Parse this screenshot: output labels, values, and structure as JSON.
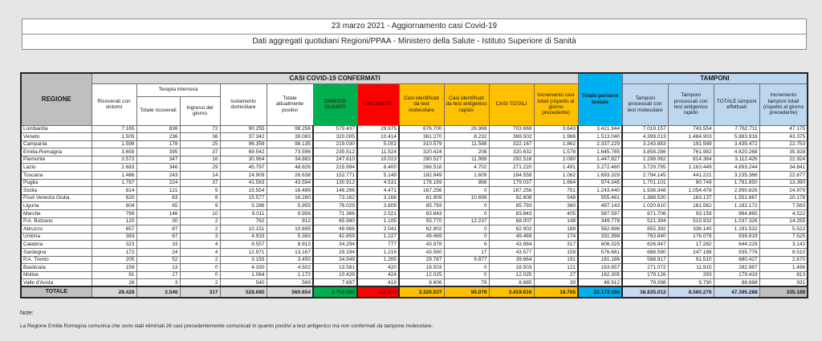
{
  "header": {
    "line1": "23 marzo 2021 - Aggiornamento casi Covid-19",
    "line2": "Dati aggregati quotidiani Regioni/PPAA - Ministero della Salute - Istituto Superiore di Sanità"
  },
  "note": {
    "title": "Note:",
    "text": "La Regione Emilia Romagna comunica che sono stati eliminati 26 casi precedentemente comunicati in quanto positivi a test antigenico ma non confermati da tampone molecolare."
  },
  "colors": {
    "green": "#00B050",
    "red": "#FF0000",
    "yellow": "#FFC000",
    "cyan": "#00B0F0",
    "light_blue": "#BDD7EE",
    "header_gray": "#BFBFBF",
    "band_gray": "#D9D9D9",
    "total_gray": "#D9D9D9"
  },
  "chart_data": {
    "type": "table",
    "title": "23 marzo 2021 - Aggiornamento casi Covid-19",
    "headers": {
      "regione": "REGIONE",
      "confermati": "CASI COVID-19 CONFERMATI",
      "tamponi": "TAMPONI",
      "ricoverati": "Ricoverati con sintomi",
      "terapia_intensiva": "Terapia intensiva",
      "totale_ricoverati": "Totale ricoverati",
      "ingressi": "Ingressi del giorno",
      "isolamento": "Isolamento domiciliare",
      "positivi": "Totale attualmente positivi",
      "dimessi": "DIMESSI GUARITI",
      "deceduti": "DECEDUTI",
      "molecolare": "Casi identificati da test molecolare",
      "antigenico": "Casi identificati da test antigenico rapido",
      "casi_totali": "CASI TOTALI",
      "incremento": "Incremento casi totali (rispetto al giorno precedente)",
      "persone_testate": "Totale persone testate",
      "tamponi_molecolare": "Tamponi processati con test molecolare",
      "tamponi_antigenico": "Tamponi processati con test antigenico rapido",
      "tamponi_totale": "TOTALE tamponi effettuati",
      "tamponi_incremento": "Incremento tamponi totali (rispetto al giorno precedente)"
    },
    "columns_order": [
      "ricoverati",
      "totale_ricoverati",
      "ingressi",
      "isolamento",
      "positivi",
      "dimessi",
      "deceduti",
      "molecolare",
      "antigenico",
      "casi_totali",
      "incremento",
      "persone_testate",
      "tamponi_molecolare",
      "tamponi_antigenico",
      "tamponi_totale",
      "tamponi_incremento"
    ],
    "rows": [
      {
        "regione": "Lombardia",
        "values": [
          "7.165",
          "836",
          "72",
          "90.255",
          "98.256",
          "575.437",
          "29.975",
          "676.700",
          "26.968",
          "703.668",
          "3.643",
          "3.421.944",
          "7.019.157",
          "743.554",
          "7.762.711",
          "47.175"
        ]
      },
      {
        "regione": "Veneto",
        "values": [
          "1.505",
          "236",
          "36",
          "37.342",
          "39.083",
          "320.005",
          "10.414",
          "361.270",
          "8.232",
          "369.502",
          "1.966",
          "1.513.040",
          "4.399.013",
          "1.484.903",
          "5.883.916",
          "43.375"
        ]
      },
      {
        "regione": "Campania",
        "values": [
          "1.598",
          "178",
          "25",
          "96.359",
          "98.135",
          "219.030",
          "5.002",
          "310.579",
          "11.588",
          "322.167",
          "1.862",
          "2.337.229",
          "3.243.883",
          "191.589",
          "3.435.472",
          "22.753"
        ]
      },
      {
        "regione": "Emilia-Romagna",
        "values": [
          "3.659",
          "395",
          "37",
          "69.542",
          "73.596",
          "235.512",
          "11.524",
          "320.424",
          "208",
          "320.632",
          "1.578",
          "1.645.785",
          "3.858.286",
          "761.982",
          "4.620.268",
          "35.928"
        ]
      },
      {
        "regione": "Piemonte",
        "values": [
          "3.572",
          "347",
          "16",
          "30.964",
          "34.883",
          "247.610",
          "10.023",
          "280.527",
          "11.989",
          "292.516",
          "2.080",
          "1.447.827",
          "2.298.062",
          "814.364",
          "3.112.426",
          "22.924"
        ]
      },
      {
        "regione": "Lazio",
        "values": [
          "2.683",
          "346",
          "29",
          "45.797",
          "48.826",
          "215.994",
          "6.400",
          "266.518",
          "4.702",
          "271.220",
          "1.491",
          "3.272.480",
          "3.729.795",
          "1.163.449",
          "4.893.244",
          "34.841"
        ]
      },
      {
        "regione": "Toscana",
        "values": [
          "1.486",
          "243",
          "14",
          "24.909",
          "26.638",
          "152.771",
          "5.149",
          "182.949",
          "1.609",
          "184.558",
          "1.062",
          "1.693.329",
          "2.794.145",
          "441.221",
          "3.235.366",
          "22.677"
        ]
      },
      {
        "regione": "Puglia",
        "values": [
          "1.787",
          "224",
          "37",
          "41.583",
          "43.594",
          "130.912",
          "4.531",
          "178.169",
          "868",
          "179.037",
          "1.664",
          "974.345",
          "1.701.101",
          "80.749",
          "1.781.850",
          "13.390"
        ]
      },
      {
        "regione": "Sicilia",
        "values": [
          "814",
          "121",
          "5",
          "15.554",
          "16.489",
          "146.296",
          "4.471",
          "167.256",
          "0",
          "167.256",
          "751",
          "1.243.440",
          "1.936.348",
          "1.054.478",
          "2.990.826",
          "24.979"
        ]
      },
      {
        "regione": "Friuli Venezia Giulia",
        "values": [
          "620",
          "83",
          "8",
          "15.577",
          "16.280",
          "73.162",
          "3.166",
          "81.909",
          "10.699",
          "92.608",
          "548",
          "555.461",
          "1.388.530",
          "163.137",
          "1.551.667",
          "10.178"
        ]
      },
      {
        "regione": "Liguria",
        "values": [
          "604",
          "65",
          "9",
          "5.286",
          "5.955",
          "76.029",
          "3.809",
          "85.793",
          "0",
          "85.793",
          "360",
          "497.143",
          "1.020.610",
          "161.562",
          "1.182.172",
          "7.583"
        ]
      },
      {
        "regione": "Marche",
        "values": [
          "799",
          "146",
          "10",
          "9.011",
          "9.956",
          "71.366",
          "2.521",
          "83.843",
          "0",
          "83.843",
          "405",
          "587.597",
          "871.706",
          "93.159",
          "964.865",
          "4.522"
        ]
      },
      {
        "regione": "P.A. Bolzano",
        "values": [
          "120",
          "30",
          "2",
          "762",
          "912",
          "65.990",
          "1.105",
          "55.770",
          "12.237",
          "68.007",
          "148",
          "349.778",
          "521.394",
          "515.932",
          "1.037.326",
          "14.255"
        ]
      },
      {
        "regione": "Abruzzo",
        "values": [
          "657",
          "87",
          "2",
          "10.151",
          "10.895",
          "49.966",
          "2.041",
          "62.902",
          "0",
          "62.902",
          "188",
          "562.696",
          "855.392",
          "336.140",
          "1.191.532",
          "5.522"
        ]
      },
      {
        "regione": "Umbria",
        "values": [
          "383",
          "67",
          "3",
          "4.933",
          "5.383",
          "42.859",
          "1.227",
          "49.469",
          "0",
          "49.469",
          "174",
          "331.998",
          "763.840",
          "176.079",
          "939.919",
          "7.525"
        ]
      },
      {
        "regione": "Calabria",
        "values": [
          "323",
          "33",
          "4",
          "8.557",
          "8.913",
          "34.294",
          "777",
          "43.978",
          "6",
          "43.984",
          "317",
          "606.325",
          "626.947",
          "17.282",
          "644.229",
          "3.142"
        ]
      },
      {
        "regione": "Sardegna",
        "values": [
          "172",
          "24",
          "4",
          "12.971",
          "13.167",
          "29.194",
          "1.216",
          "43.560",
          "17",
          "43.577",
          "159",
          "576.681",
          "688.590",
          "247.188",
          "935.778",
          "8.510"
        ]
      },
      {
        "regione": "P.A. Trento",
        "values": [
          "205",
          "52",
          "2",
          "3.193",
          "3.450",
          "34.949",
          "1.265",
          "29.787",
          "9.877",
          "39.664",
          "191",
          "181.186",
          "588.917",
          "91.510",
          "680.427",
          "2.670"
        ]
      },
      {
        "regione": "Basilicata",
        "values": [
          "159",
          "13",
          "0",
          "4.330",
          "4.502",
          "13.581",
          "420",
          "18.503",
          "0",
          "18.503",
          "121",
          "163.657",
          "271.072",
          "11.915",
          "282.987",
          "1.496"
        ]
      },
      {
        "regione": "Molise",
        "values": [
          "91",
          "17",
          "0",
          "1.064",
          "1.172",
          "10.429",
          "424",
          "12.025",
          "0",
          "12.025",
          "27",
          "162.305",
          "179.126",
          "293",
          "179.419",
          "813"
        ]
      },
      {
        "regione": "Valle d'Aosta",
        "values": [
          "26",
          "3",
          "2",
          "540",
          "569",
          "7.697",
          "419",
          "8.606",
          "79",
          "8.685",
          "30",
          "48.912",
          "79.098",
          "9.790",
          "88.888",
          "931"
        ]
      }
    ],
    "total": {
      "label": "TOTALE",
      "values": [
        "28.428",
        "3.546",
        "317",
        "528.680",
        "560.654",
        "2.753.083",
        "105.879",
        "3.320.537",
        "99.079",
        "3.419.616",
        "18.765",
        "22.173.158",
        "38.835.012",
        "8.560.276",
        "47.395.288",
        "335.189"
      ]
    }
  }
}
